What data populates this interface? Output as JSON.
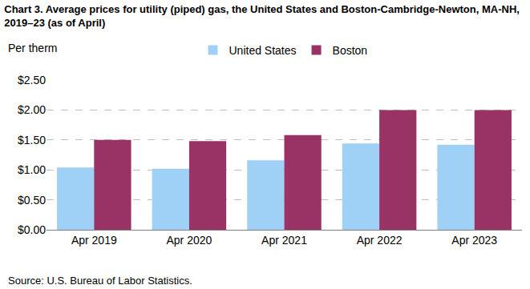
{
  "chart_data": {
    "type": "bar",
    "title": "Chart 3. Average prices for utility (piped) gas, the United States and Boston-Cambridge-Newton, MA-NH, 2019–23 (as of April)",
    "ylabel": "Per therm",
    "source": "Source: U.S. Bureau of Labor Statistics.",
    "categories": [
      "Apr 2019",
      "Apr 2020",
      "Apr 2021",
      "Apr 2022",
      "Apr 2023"
    ],
    "series": [
      {
        "name": "United States",
        "color": "#9fd0f6",
        "values": [
          1.04,
          1.02,
          1.16,
          1.44,
          1.42
        ]
      },
      {
        "name": "Boston",
        "color": "#993366",
        "values": [
          1.5,
          1.48,
          1.58,
          2.0,
          2.0
        ]
      }
    ],
    "ylim": [
      0,
      2.5
    ],
    "yticks": [
      {
        "value": 0,
        "label": "$0.00"
      },
      {
        "value": 0.5,
        "label": "$0.50"
      },
      {
        "value": 1,
        "label": "$1.00"
      },
      {
        "value": 1.5,
        "label": "$1.50"
      },
      {
        "value": 2,
        "label": "$2.00"
      },
      {
        "value": 2.5,
        "label": "$2.50"
      }
    ],
    "grid": true,
    "legend": "top"
  }
}
